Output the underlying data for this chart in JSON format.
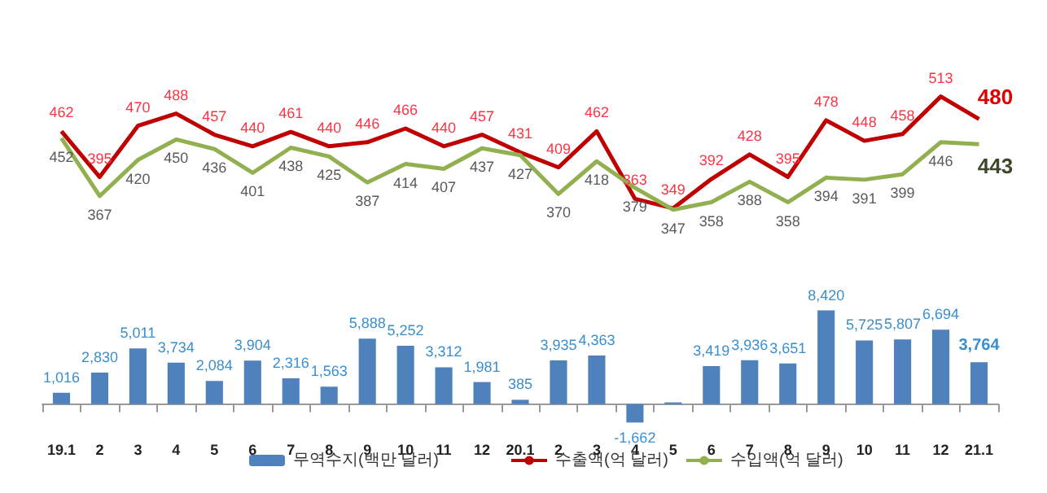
{
  "chart_data": [
    {
      "type": "line",
      "categories": [
        "19.1",
        "2",
        "3",
        "4",
        "5",
        "6",
        "7",
        "8",
        "9",
        "10",
        "11",
        "12",
        "20.1",
        "2",
        "3",
        "4",
        "5",
        "6",
        "7",
        "8",
        "9",
        "10",
        "11",
        "12",
        "21.1"
      ],
      "series": [
        {
          "name": "수출액(억 달러)",
          "color": "#c00000",
          "values": [
            462,
            395,
            470,
            488,
            457,
            440,
            461,
            440,
            446,
            466,
            440,
            457,
            431,
            409,
            462,
            363,
            349,
            392,
            428,
            395,
            478,
            448,
            458,
            513,
            480
          ]
        },
        {
          "name": "수입액(억 달러)",
          "color": "#92b050",
          "values": [
            452,
            367,
            420,
            450,
            436,
            401,
            438,
            425,
            387,
            414,
            407,
            437,
            427,
            370,
            418,
            379,
            347,
            358,
            388,
            358,
            394,
            391,
            399,
            446,
            443
          ]
        }
      ],
      "data_labels": true,
      "legend": "bottom",
      "tick_labels": false,
      "marker": "none",
      "line_style": "solid"
    },
    {
      "type": "bar",
      "categories": [
        "19.1",
        "2",
        "3",
        "4",
        "5",
        "6",
        "7",
        "8",
        "9",
        "10",
        "11",
        "12",
        "20.1",
        "2",
        "3",
        "4",
        "5",
        "6",
        "7",
        "8",
        "9",
        "10",
        "11",
        "12",
        "21.1"
      ],
      "series": [
        {
          "name": "무역수지(백만 달러)",
          "color": "#4f81bd",
          "values": [
            1016,
            2830,
            5011,
            3734,
            2084,
            3904,
            2316,
            1563,
            5888,
            5252,
            3312,
            1981,
            385,
            3935,
            4363,
            -1662,
            150,
            3419,
            3936,
            3651,
            8420,
            5725,
            5807,
            6694,
            3764
          ],
          "value_labels": [
            "1,016",
            "2,830",
            "5,011",
            "3,734",
            "2,084",
            "3,904",
            "2,316",
            "1,563",
            "5,888",
            "5,252",
            "3,312",
            "1,981",
            "385",
            "3,935",
            "4,363",
            "-1,662",
            null,
            "3,419",
            "3,936",
            "3,651",
            "8,420",
            "5,725",
            "5,807",
            "6,694",
            "3,764"
          ]
        }
      ],
      "legend": "bottom",
      "tick_labels": "x"
    }
  ]
}
